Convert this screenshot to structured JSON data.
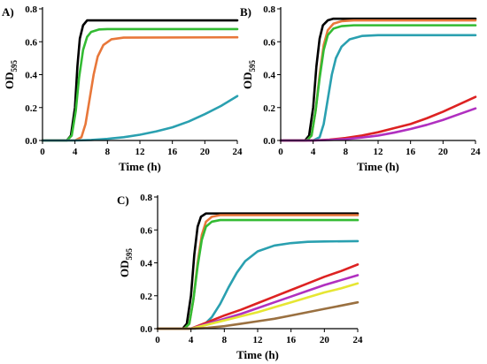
{
  "chart_data": [
    {
      "type": "line",
      "panel_label": "A)",
      "xlabel": "Time (h)",
      "ylabel_main": "OD",
      "ylabel_sub": "595",
      "xlim": [
        0,
        24
      ],
      "ylim": [
        0,
        0.8
      ],
      "x_ticks": [
        0,
        4,
        8,
        12,
        16,
        20,
        24
      ],
      "y_ticks": [
        0.0,
        0.2,
        0.4,
        0.6,
        0.8
      ],
      "x_tick_labels": [
        "0",
        "4",
        "8",
        "12",
        "16",
        "20",
        "24"
      ],
      "y_tick_labels": [
        "0.0",
        "0.2",
        "0.4",
        "0.6",
        "0.8"
      ],
      "grid": false,
      "series": [
        {
          "color": "#000000",
          "x": [
            0,
            3.0,
            3.5,
            4.0,
            4.3,
            4.6,
            5.0,
            5.5,
            6.0,
            7.0,
            24
          ],
          "y": [
            0.0,
            0.0,
            0.03,
            0.2,
            0.45,
            0.62,
            0.7,
            0.73,
            0.73,
            0.73,
            0.73
          ]
        },
        {
          "color": "#33bb33",
          "x": [
            0,
            3.0,
            3.6,
            4.1,
            4.5,
            5.0,
            5.5,
            6.0,
            7.0,
            8.0,
            24
          ],
          "y": [
            0.0,
            0.0,
            0.03,
            0.18,
            0.38,
            0.55,
            0.63,
            0.66,
            0.675,
            0.677,
            0.677
          ]
        },
        {
          "color": "#e8773a",
          "x": [
            0,
            4.0,
            4.8,
            5.3,
            5.8,
            6.3,
            6.8,
            7.5,
            8.5,
            10.0,
            24
          ],
          "y": [
            0.0,
            0.0,
            0.02,
            0.1,
            0.25,
            0.4,
            0.51,
            0.58,
            0.615,
            0.625,
            0.627
          ]
        },
        {
          "color": "#2aa0b0",
          "x": [
            0,
            4,
            6,
            8,
            10,
            12,
            14,
            16,
            18,
            20,
            22,
            24
          ],
          "y": [
            0.0,
            0.0,
            0.003,
            0.01,
            0.02,
            0.035,
            0.055,
            0.08,
            0.115,
            0.16,
            0.21,
            0.27
          ]
        }
      ]
    },
    {
      "type": "line",
      "panel_label": "B)",
      "xlabel": "Time (h)",
      "ylabel_main": "OD",
      "ylabel_sub": "595",
      "xlim": [
        0,
        24
      ],
      "ylim": [
        0,
        0.8
      ],
      "x_ticks": [
        0,
        4,
        8,
        12,
        16,
        20,
        24
      ],
      "y_ticks": [
        0.0,
        0.2,
        0.4,
        0.6,
        0.8
      ],
      "x_tick_labels": [
        "0",
        "4",
        "8",
        "12",
        "16",
        "20",
        "24"
      ],
      "y_tick_labels": [
        "0.0",
        "0.2",
        "0.4",
        "0.6",
        "0.8"
      ],
      "grid": false,
      "series": [
        {
          "color": "#000000",
          "x": [
            0,
            3.0,
            3.5,
            4.0,
            4.4,
            4.8,
            5.2,
            5.8,
            6.5,
            8.0,
            24
          ],
          "y": [
            0.0,
            0.0,
            0.03,
            0.2,
            0.45,
            0.62,
            0.7,
            0.73,
            0.74,
            0.74,
            0.74
          ]
        },
        {
          "color": "#e8773a",
          "x": [
            0,
            3.2,
            3.8,
            4.3,
            4.8,
            5.3,
            5.8,
            6.5,
            7.5,
            9.0,
            24
          ],
          "y": [
            0.0,
            0.0,
            0.03,
            0.18,
            0.4,
            0.58,
            0.67,
            0.71,
            0.725,
            0.73,
            0.73
          ]
        },
        {
          "color": "#33bb33",
          "x": [
            0,
            3.2,
            3.8,
            4.3,
            4.8,
            5.3,
            5.8,
            6.5,
            7.5,
            9.0,
            24
          ],
          "y": [
            0.0,
            0.0,
            0.03,
            0.18,
            0.38,
            0.55,
            0.64,
            0.68,
            0.695,
            0.7,
            0.7
          ]
        },
        {
          "color": "#2aa0b0",
          "x": [
            0,
            4.0,
            4.8,
            5.3,
            5.8,
            6.3,
            6.8,
            7.5,
            8.5,
            10.0,
            12.0,
            24
          ],
          "y": [
            0.0,
            0.0,
            0.02,
            0.1,
            0.25,
            0.4,
            0.5,
            0.57,
            0.615,
            0.635,
            0.64,
            0.64
          ]
        },
        {
          "color": "#dd2222",
          "x": [
            0,
            4,
            6,
            8,
            10,
            12,
            14,
            16,
            18,
            20,
            22,
            24
          ],
          "y": [
            0.0,
            0.0,
            0.005,
            0.015,
            0.03,
            0.05,
            0.075,
            0.1,
            0.135,
            0.175,
            0.22,
            0.265
          ]
        },
        {
          "color": "#b030c0",
          "x": [
            0,
            4,
            6,
            8,
            10,
            12,
            14,
            16,
            18,
            20,
            22,
            24
          ],
          "y": [
            0.0,
            0.0,
            0.003,
            0.008,
            0.018,
            0.03,
            0.048,
            0.07,
            0.095,
            0.125,
            0.16,
            0.195
          ]
        }
      ]
    },
    {
      "type": "line",
      "panel_label": "C)",
      "xlabel": "Time (h)",
      "ylabel_main": "OD",
      "ylabel_sub": "595",
      "xlim": [
        0,
        24
      ],
      "ylim": [
        0,
        0.8
      ],
      "x_ticks": [
        0,
        4,
        8,
        12,
        16,
        20,
        24
      ],
      "y_ticks": [
        0.0,
        0.2,
        0.4,
        0.6,
        0.8
      ],
      "x_tick_labels": [
        "0",
        "4",
        "8",
        "12",
        "16",
        "20",
        "24"
      ],
      "y_tick_labels": [
        "0.0",
        "0.2",
        "0.4",
        "0.6",
        "0.8"
      ],
      "grid": false,
      "series": [
        {
          "color": "#000000",
          "x": [
            0,
            3.0,
            3.5,
            4.0,
            4.4,
            4.8,
            5.2,
            5.8,
            6.5,
            8.0,
            24
          ],
          "y": [
            0.0,
            0.0,
            0.03,
            0.2,
            0.45,
            0.62,
            0.68,
            0.7,
            0.7,
            0.7,
            0.7
          ]
        },
        {
          "color": "#e8773a",
          "x": [
            0,
            3.2,
            3.8,
            4.3,
            4.8,
            5.3,
            5.8,
            6.5,
            7.5,
            9.0,
            24
          ],
          "y": [
            0.0,
            0.0,
            0.03,
            0.18,
            0.4,
            0.57,
            0.65,
            0.68,
            0.69,
            0.69,
            0.69
          ]
        },
        {
          "color": "#33bb33",
          "x": [
            0,
            3.2,
            3.8,
            4.3,
            4.8,
            5.3,
            5.8,
            6.5,
            7.5,
            9.0,
            24
          ],
          "y": [
            0.0,
            0.0,
            0.03,
            0.18,
            0.38,
            0.54,
            0.62,
            0.65,
            0.66,
            0.66,
            0.66
          ]
        },
        {
          "color": "#2aa0b0",
          "x": [
            0,
            4.5,
            5.5,
            6.5,
            7.5,
            8.5,
            9.5,
            10.5,
            12.0,
            14.0,
            16.0,
            18.0,
            20.0,
            24
          ],
          "y": [
            0.0,
            0.0,
            0.02,
            0.07,
            0.15,
            0.25,
            0.34,
            0.41,
            0.47,
            0.505,
            0.52,
            0.528,
            0.53,
            0.532
          ]
        },
        {
          "color": "#dd2222",
          "x": [
            0,
            4,
            6,
            8,
            10,
            12,
            14,
            16,
            18,
            20,
            22,
            24
          ],
          "y": [
            0.0,
            0.0,
            0.04,
            0.08,
            0.115,
            0.155,
            0.195,
            0.235,
            0.275,
            0.315,
            0.35,
            0.39
          ]
        },
        {
          "color": "#b030c0",
          "x": [
            0,
            4,
            6,
            8,
            10,
            12,
            14,
            16,
            18,
            20,
            22,
            24
          ],
          "y": [
            0.0,
            0.0,
            0.03,
            0.06,
            0.09,
            0.125,
            0.16,
            0.195,
            0.23,
            0.265,
            0.295,
            0.325
          ]
        },
        {
          "color": "#e6e633",
          "x": [
            0,
            4,
            6,
            8,
            10,
            12,
            14,
            16,
            18,
            20,
            22,
            24
          ],
          "y": [
            0.0,
            0.0,
            0.025,
            0.05,
            0.075,
            0.1,
            0.13,
            0.16,
            0.19,
            0.22,
            0.245,
            0.275
          ]
        },
        {
          "color": "#9a7040",
          "x": [
            0,
            4,
            6,
            8,
            10,
            12,
            14,
            16,
            18,
            20,
            22,
            24
          ],
          "y": [
            0.0,
            0.0,
            0.005,
            0.015,
            0.03,
            0.045,
            0.06,
            0.08,
            0.1,
            0.12,
            0.14,
            0.16
          ]
        }
      ]
    }
  ]
}
